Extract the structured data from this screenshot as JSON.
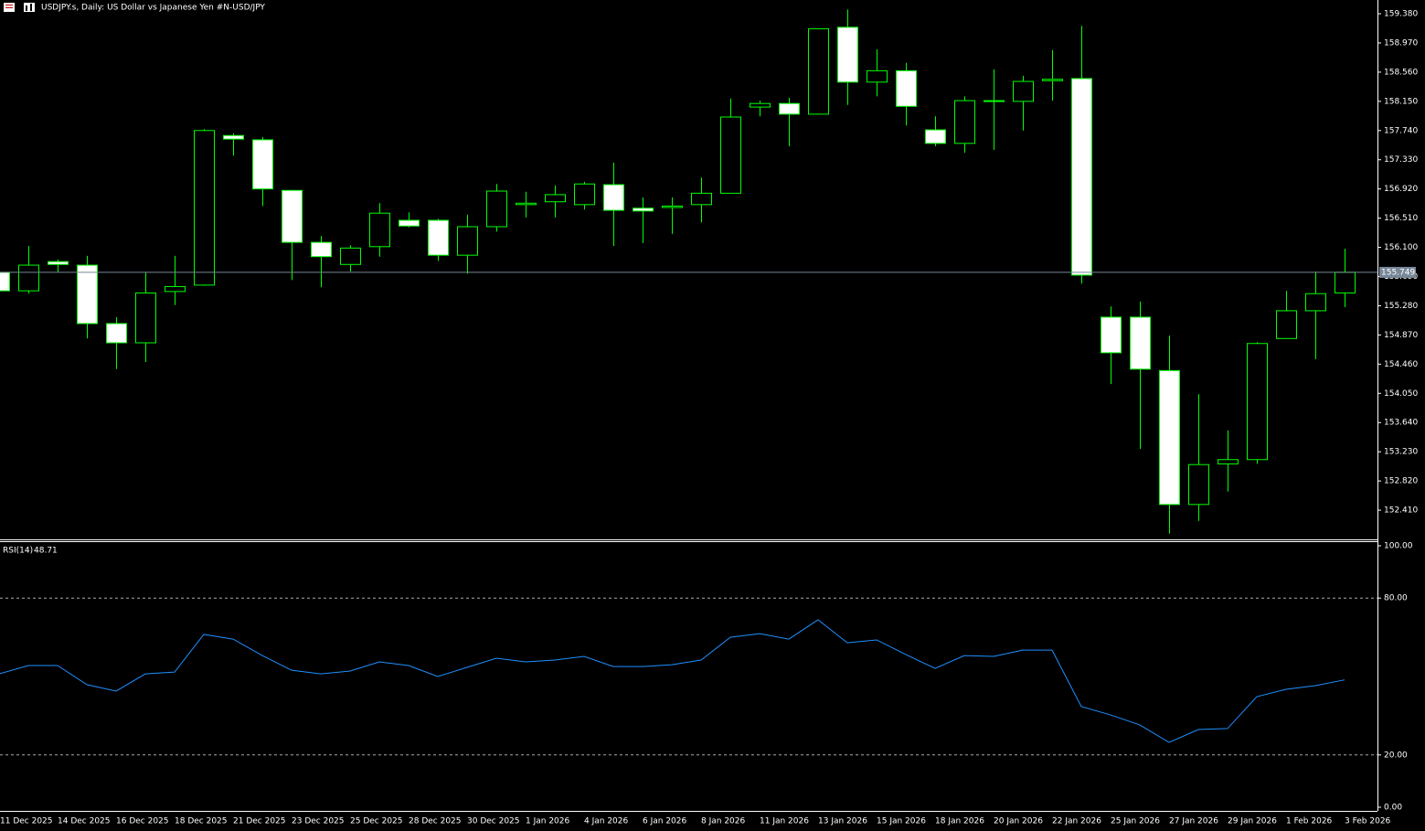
{
  "chart_data": [
    {
      "type": "candlestick",
      "title": "USDJPY.s, Daily:  US Dollar vs  Japanese Yen #N-USD/JPY",
      "categories": [
        "11 Dec 2025",
        null,
        "14 Dec 2025",
        null,
        "16 Dec 2025",
        null,
        "18 Dec 2025",
        null,
        "21 Dec 2025",
        null,
        "23 Dec 2025",
        null,
        "25 Dec 2025",
        null,
        "28 Dec 2025",
        null,
        "30 Dec 2025",
        null,
        "1 Jan 2026",
        null,
        "4 Jan 2026",
        null,
        "6 Jan 2026",
        null,
        "8 Jan 2026",
        null,
        "11 Jan 2026",
        null,
        "13 Jan 2026",
        null,
        "15 Jan 2026",
        null,
        "18 Jan 2026",
        null,
        "20 Jan 2026",
        null,
        "22 Jan 2026",
        null,
        "25 Jan 2026",
        null,
        "27 Jan 2026",
        null,
        "29 Jan 2026",
        null,
        "1 Feb 2026",
        null,
        "3 Feb 2026"
      ],
      "open": [
        155.75,
        155.49,
        155.9,
        155.85,
        155.03,
        154.76,
        155.48,
        155.57,
        157.67,
        157.61,
        156.9,
        156.17,
        155.86,
        156.11,
        156.48,
        156.48,
        155.99,
        156.39,
        156.7,
        156.74,
        156.7,
        156.98,
        156.65,
        156.66,
        156.7,
        156.86,
        158.07,
        158.12,
        157.97,
        159.19,
        158.42,
        158.58,
        157.75,
        157.56,
        158.15,
        158.15,
        158.44,
        158.47,
        155.12,
        155.12,
        154.37,
        152.49,
        153.06,
        153.12,
        154.82,
        155.21,
        155.46
      ],
      "high": [
        155.75,
        156.12,
        155.93,
        155.98,
        155.12,
        155.75,
        155.98,
        157.76,
        157.7,
        157.65,
        156.9,
        156.26,
        156.13,
        156.72,
        156.59,
        156.5,
        156.56,
        156.99,
        156.88,
        156.97,
        157.02,
        157.29,
        156.8,
        156.8,
        157.08,
        158.19,
        158.16,
        158.2,
        159.17,
        159.44,
        158.88,
        158.69,
        157.94,
        158.22,
        158.6,
        158.51,
        158.87,
        159.21,
        155.27,
        155.34,
        154.86,
        154.04,
        153.53,
        154.77,
        155.49,
        155.76,
        156.08
      ],
      "low": [
        155.49,
        155.45,
        155.75,
        154.82,
        154.39,
        154.49,
        155.29,
        155.56,
        157.39,
        156.68,
        155.64,
        155.54,
        155.76,
        155.97,
        156.38,
        155.91,
        155.73,
        156.32,
        156.52,
        156.52,
        156.63,
        156.12,
        156.16,
        156.29,
        156.45,
        156.86,
        157.94,
        157.52,
        157.97,
        158.1,
        158.22,
        157.81,
        157.52,
        157.43,
        157.47,
        157.74,
        158.16,
        155.59,
        154.18,
        153.27,
        152.08,
        152.26,
        152.67,
        153.06,
        154.82,
        154.53,
        155.26
      ],
      "close": [
        155.49,
        155.85,
        155.86,
        155.03,
        154.76,
        155.46,
        155.55,
        157.74,
        157.62,
        156.92,
        156.17,
        155.97,
        156.09,
        156.58,
        156.4,
        155.99,
        156.39,
        156.89,
        156.72,
        156.84,
        156.99,
        156.62,
        156.61,
        156.68,
        156.86,
        157.93,
        158.12,
        157.97,
        159.17,
        158.42,
        158.58,
        158.08,
        157.56,
        158.16,
        158.16,
        158.43,
        158.46,
        155.71,
        154.62,
        154.39,
        152.49,
        153.05,
        153.12,
        154.75,
        155.21,
        155.45,
        155.75
      ],
      "ylim": [
        152.0,
        159.573
      ],
      "yticks": [
        {
          "value": 159.38,
          "label": "159.380"
        },
        {
          "value": 158.97,
          "label": "158.970"
        },
        {
          "value": 158.56,
          "label": "158.560"
        },
        {
          "value": 158.15,
          "label": "158.150"
        },
        {
          "value": 157.74,
          "label": "157.740"
        },
        {
          "value": 157.33,
          "label": "157.330"
        },
        {
          "value": 156.92,
          "label": "156.920"
        },
        {
          "value": 156.51,
          "label": "156.510"
        },
        {
          "value": 156.1,
          "label": "156.100"
        },
        {
          "value": 155.69,
          "label": "155.690"
        },
        {
          "value": 155.28,
          "label": "155.280"
        },
        {
          "value": 154.87,
          "label": "154.870"
        },
        {
          "value": 154.46,
          "label": "154.460"
        },
        {
          "value": 154.05,
          "label": "154.050"
        },
        {
          "value": 153.64,
          "label": "153.640"
        },
        {
          "value": 153.23,
          "label": "153.230"
        },
        {
          "value": 152.82,
          "label": "152.820"
        },
        {
          "value": 152.41,
          "label": "152.410"
        }
      ],
      "last_price": 155.749,
      "up_color": "#00ff00",
      "down_color": "#ffffff",
      "price_line_color": "#778899"
    },
    {
      "type": "line",
      "title": "RSI(14)",
      "values": [
        51.0,
        54.2,
        54.2,
        46.9,
        44.4,
        51.0,
        51.7,
        66.1,
        64.3,
        58.0,
        52.4,
        51.0,
        52.1,
        55.6,
        54.2,
        50.0,
        53.5,
        57.0,
        55.6,
        56.3,
        57.7,
        53.8,
        53.8,
        54.5,
        56.3,
        65.0,
        66.4,
        64.3,
        71.7,
        62.9,
        64.0,
        58.4,
        53.1,
        58.0,
        57.7,
        60.1,
        60.1,
        38.5,
        35.3,
        31.5,
        24.8,
        29.7,
        30.1,
        42.3,
        45.1,
        46.5,
        48.71
      ],
      "ylim": [
        0,
        100
      ],
      "yticks": [
        {
          "value": 100,
          "label": "100.00"
        },
        {
          "value": 80,
          "label": "80.00"
        },
        {
          "value": 20,
          "label": "20.00"
        },
        {
          "value": 0,
          "label": "0.00"
        }
      ],
      "levels": [
        80,
        20
      ],
      "color": "#1e90ff"
    }
  ]
}
